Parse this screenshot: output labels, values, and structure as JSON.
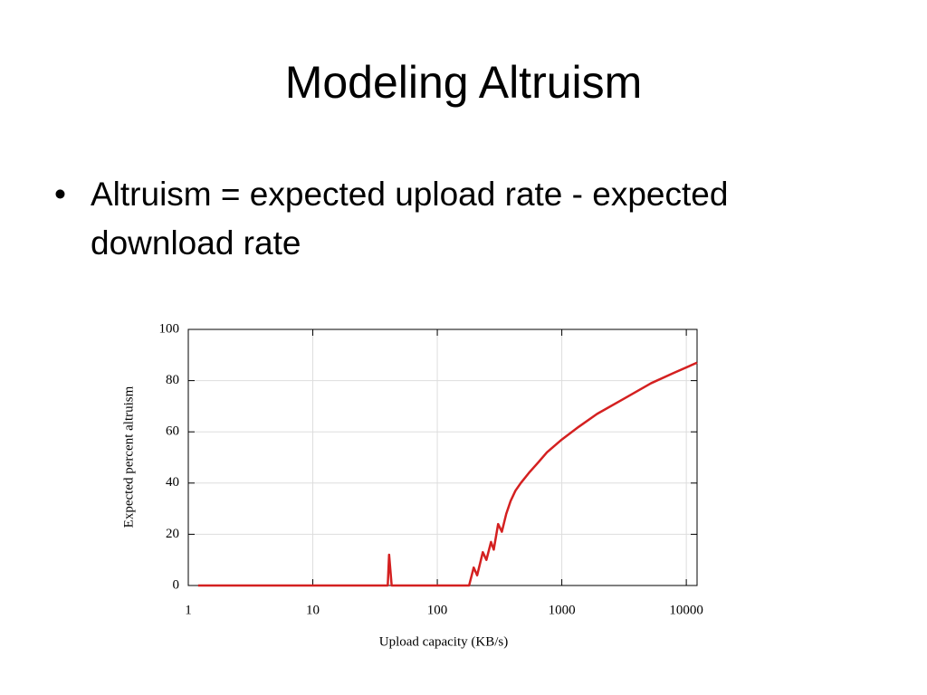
{
  "slide_title": "Modeling Altruism",
  "bullets": [
    "Altruism = expected upload rate - expected download rate"
  ],
  "chart_data": {
    "type": "line",
    "x_label": "Upload capacity (KB/s)",
    "y_label": "Expected percent altruism",
    "x": [
      1.2,
      40,
      41,
      43,
      180,
      196,
      209,
      232,
      248,
      270,
      284,
      308,
      330,
      358,
      388,
      424,
      468,
      545,
      645,
      760,
      1000,
      1370,
      1920,
      3170,
      5220,
      7920,
      12200
    ],
    "values": [
      0,
      0,
      12,
      0,
      0,
      7,
      4,
      13,
      10,
      17,
      14,
      24,
      21,
      28,
      33,
      37,
      40,
      44,
      48,
      52,
      57,
      62,
      67,
      73,
      79,
      83,
      87
    ],
    "color": "#d42020",
    "x_log": true,
    "xlim": [
      1,
      12200
    ],
    "xticks": [
      1,
      10,
      100,
      1000,
      10000
    ],
    "ylim": [
      0,
      100
    ],
    "yticks": [
      0,
      20,
      40,
      60,
      80,
      100
    ],
    "grid": true
  }
}
